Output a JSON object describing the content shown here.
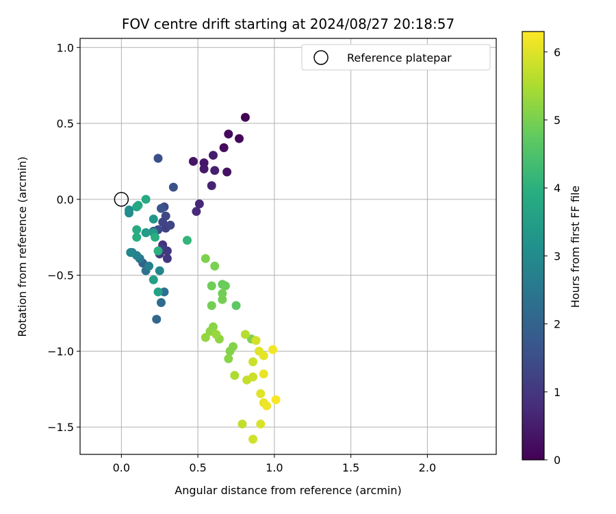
{
  "chart_data": {
    "type": "scatter",
    "title": "FOV centre drift starting at 2024/08/27 20:18:57",
    "xlabel": "Angular distance from reference (arcmin)",
    "ylabel": "Rotation from reference (arcmin)",
    "xlim": [
      -0.27,
      2.45
    ],
    "ylim": [
      -1.68,
      1.06
    ],
    "xticks": [
      0.0,
      0.5,
      1.0,
      1.5,
      2.0
    ],
    "xtick_labels": [
      "0.0",
      "0.5",
      "1.0",
      "1.5",
      "2.0"
    ],
    "yticks": [
      0.5,
      0.0,
      -0.5,
      -1.0,
      -1.5,
      1.0
    ],
    "ytick_labels": [
      "0.5",
      "0.0",
      "−0.5",
      "−1.0",
      "−1.5",
      "1.0"
    ],
    "grid": true,
    "legend": {
      "label": "Reference platepar",
      "placement": "top-right"
    },
    "reference_point": {
      "x": 0.0,
      "y": 0.0
    },
    "colorbar": {
      "label": "Hours from first FF file",
      "range": [
        0,
        6.3
      ],
      "ticks": [
        0,
        1,
        2,
        3,
        4,
        5,
        6
      ],
      "tick_labels": [
        "0",
        "1",
        "2",
        "3",
        "4",
        "5",
        "6"
      ],
      "colormap": "viridis"
    },
    "points": [
      {
        "x": 0.81,
        "y": 0.54,
        "c": 0.05
      },
      {
        "x": 0.77,
        "y": 0.4,
        "c": 0.1
      },
      {
        "x": 0.7,
        "y": 0.43,
        "c": 0.15
      },
      {
        "x": 0.67,
        "y": 0.34,
        "c": 0.2
      },
      {
        "x": 0.69,
        "y": 0.18,
        "c": 0.3
      },
      {
        "x": 0.47,
        "y": 0.25,
        "c": 0.35
      },
      {
        "x": 0.54,
        "y": 0.24,
        "c": 0.4
      },
      {
        "x": 0.54,
        "y": 0.2,
        "c": 0.45
      },
      {
        "x": 0.6,
        "y": 0.29,
        "c": 0.5
      },
      {
        "x": 0.61,
        "y": 0.19,
        "c": 0.55
      },
      {
        "x": 0.59,
        "y": 0.09,
        "c": 0.6
      },
      {
        "x": 0.51,
        "y": -0.03,
        "c": 0.7
      },
      {
        "x": 0.49,
        "y": -0.08,
        "c": 0.75
      },
      {
        "x": 0.27,
        "y": -0.3,
        "c": 0.9
      },
      {
        "x": 0.3,
        "y": -0.39,
        "c": 1.0
      },
      {
        "x": 0.3,
        "y": -0.34,
        "c": 1.05
      },
      {
        "x": 0.25,
        "y": -0.36,
        "c": 1.1
      },
      {
        "x": 0.26,
        "y": -0.33,
        "c": 1.15
      },
      {
        "x": 0.29,
        "y": -0.19,
        "c": 1.2
      },
      {
        "x": 0.27,
        "y": -0.15,
        "c": 1.25
      },
      {
        "x": 0.32,
        "y": -0.17,
        "c": 1.3
      },
      {
        "x": 0.29,
        "y": -0.11,
        "c": 1.35
      },
      {
        "x": 0.28,
        "y": -0.05,
        "c": 1.4
      },
      {
        "x": 0.24,
        "y": -0.2,
        "c": 1.45
      },
      {
        "x": 0.24,
        "y": 0.27,
        "c": 1.5
      },
      {
        "x": 0.34,
        "y": 0.08,
        "c": 1.55
      },
      {
        "x": 0.26,
        "y": -0.06,
        "c": 1.65
      },
      {
        "x": 0.21,
        "y": -0.21,
        "c": 1.75
      },
      {
        "x": 0.16,
        "y": -0.22,
        "c": 1.85
      },
      {
        "x": 0.14,
        "y": -0.42,
        "c": 1.95
      },
      {
        "x": 0.23,
        "y": -0.79,
        "c": 2.1
      },
      {
        "x": 0.26,
        "y": -0.68,
        "c": 2.2
      },
      {
        "x": 0.28,
        "y": -0.61,
        "c": 2.3
      },
      {
        "x": 0.16,
        "y": -0.47,
        "c": 2.4
      },
      {
        "x": 0.12,
        "y": -0.39,
        "c": 2.5
      },
      {
        "x": 0.07,
        "y": -0.35,
        "c": 2.6
      },
      {
        "x": 0.18,
        "y": -0.44,
        "c": 2.7
      },
      {
        "x": 0.1,
        "y": -0.37,
        "c": 2.8
      },
      {
        "x": 0.25,
        "y": -0.47,
        "c": 2.85
      },
      {
        "x": 0.06,
        "y": -0.35,
        "c": 2.9
      },
      {
        "x": 0.05,
        "y": -0.09,
        "c": 3.0
      },
      {
        "x": 0.05,
        "y": -0.07,
        "c": 3.1
      },
      {
        "x": 0.21,
        "y": -0.13,
        "c": 3.3
      },
      {
        "x": 0.21,
        "y": -0.22,
        "c": 3.4
      },
      {
        "x": 0.16,
        "y": -0.22,
        "c": 3.45
      },
      {
        "x": 0.21,
        "y": -0.53,
        "c": 3.5
      },
      {
        "x": 0.24,
        "y": -0.61,
        "c": 3.6
      },
      {
        "x": 0.1,
        "y": -0.05,
        "c": 3.7
      },
      {
        "x": 0.11,
        "y": -0.04,
        "c": 3.75
      },
      {
        "x": 0.16,
        "y": 0.0,
        "c": 3.8
      },
      {
        "x": 0.1,
        "y": -0.2,
        "c": 3.85
      },
      {
        "x": 0.1,
        "y": -0.25,
        "c": 3.9
      },
      {
        "x": 0.22,
        "y": -0.25,
        "c": 3.95
      },
      {
        "x": 0.24,
        "y": -0.34,
        "c": 4.0
      },
      {
        "x": 0.43,
        "y": -0.27,
        "c": 4.1
      },
      {
        "x": 0.75,
        "y": -0.7,
        "c": 4.7
      },
      {
        "x": 0.66,
        "y": -0.56,
        "c": 4.8
      },
      {
        "x": 0.68,
        "y": -0.57,
        "c": 4.85
      },
      {
        "x": 0.59,
        "y": -0.57,
        "c": 4.9
      },
      {
        "x": 0.66,
        "y": -0.62,
        "c": 4.9
      },
      {
        "x": 0.66,
        "y": -0.66,
        "c": 4.95
      },
      {
        "x": 0.59,
        "y": -0.7,
        "c": 4.95
      },
      {
        "x": 0.61,
        "y": -0.44,
        "c": 5.0
      },
      {
        "x": 0.55,
        "y": -0.39,
        "c": 5.05
      },
      {
        "x": 0.85,
        "y": -0.92,
        "c": 5.05
      },
      {
        "x": 0.73,
        "y": -0.97,
        "c": 5.1
      },
      {
        "x": 0.71,
        "y": -1.0,
        "c": 5.1
      },
      {
        "x": 0.7,
        "y": -1.05,
        "c": 5.15
      },
      {
        "x": 0.6,
        "y": -0.84,
        "c": 5.15
      },
      {
        "x": 0.64,
        "y": -0.92,
        "c": 5.2
      },
      {
        "x": 0.58,
        "y": -0.87,
        "c": 5.2
      },
      {
        "x": 0.55,
        "y": -0.91,
        "c": 5.25
      },
      {
        "x": 0.62,
        "y": -0.89,
        "c": 5.3
      },
      {
        "x": 0.74,
        "y": -1.16,
        "c": 5.5
      },
      {
        "x": 0.81,
        "y": -0.89,
        "c": 5.6
      },
      {
        "x": 0.79,
        "y": -1.48,
        "c": 5.7
      },
      {
        "x": 0.82,
        "y": -1.19,
        "c": 5.75
      },
      {
        "x": 0.86,
        "y": -1.07,
        "c": 5.8
      },
      {
        "x": 0.86,
        "y": -1.17,
        "c": 5.8
      },
      {
        "x": 0.86,
        "y": -1.58,
        "c": 5.85
      },
      {
        "x": 0.88,
        "y": -0.93,
        "c": 5.9
      },
      {
        "x": 0.91,
        "y": -1.48,
        "c": 5.95
      },
      {
        "x": 0.91,
        "y": -1.28,
        "c": 6.0
      },
      {
        "x": 0.9,
        "y": -1.0,
        "c": 6.0
      },
      {
        "x": 0.93,
        "y": -1.03,
        "c": 6.05
      },
      {
        "x": 0.93,
        "y": -1.15,
        "c": 6.1
      },
      {
        "x": 0.93,
        "y": -1.34,
        "c": 6.1
      },
      {
        "x": 0.95,
        "y": -1.36,
        "c": 6.15
      },
      {
        "x": 0.99,
        "y": -0.99,
        "c": 6.2
      },
      {
        "x": 1.01,
        "y": -1.32,
        "c": 6.25
      }
    ]
  }
}
